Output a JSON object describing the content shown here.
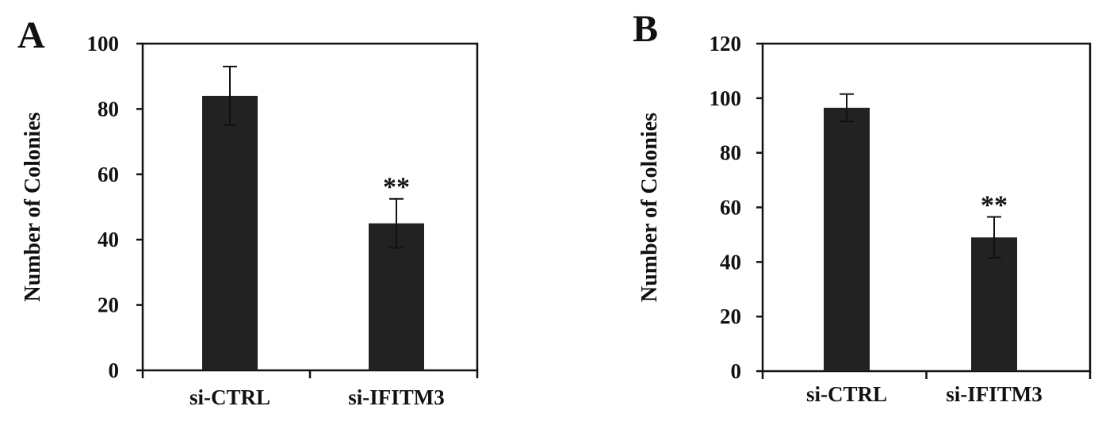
{
  "chart_data": [
    {
      "type": "bar",
      "panel": "A",
      "categories": [
        "si-CTRL",
        "si-IFITM3"
      ],
      "values": [
        84,
        45
      ],
      "errors": [
        9,
        7.5
      ],
      "annotations": [
        "",
        "**"
      ],
      "ylabel": "Number of Colonies",
      "xlabel": "",
      "ylim": [
        0,
        100
      ],
      "yticks": [
        "0",
        "20",
        "40",
        "60",
        "80",
        "100"
      ],
      "bar_color": "#222222",
      "grid": false
    },
    {
      "type": "bar",
      "panel": "B",
      "categories": [
        "si-CTRL",
        "si-IFITM3"
      ],
      "values": [
        96.5,
        49
      ],
      "errors": [
        5,
        7.5
      ],
      "annotations": [
        "",
        "**"
      ],
      "ylabel": "Number of Colonies",
      "xlabel": "",
      "ylim": [
        0,
        120
      ],
      "yticks": [
        "0",
        "20",
        "40",
        "60",
        "80",
        "100",
        "120"
      ],
      "bar_color": "#222222",
      "grid": false
    }
  ]
}
